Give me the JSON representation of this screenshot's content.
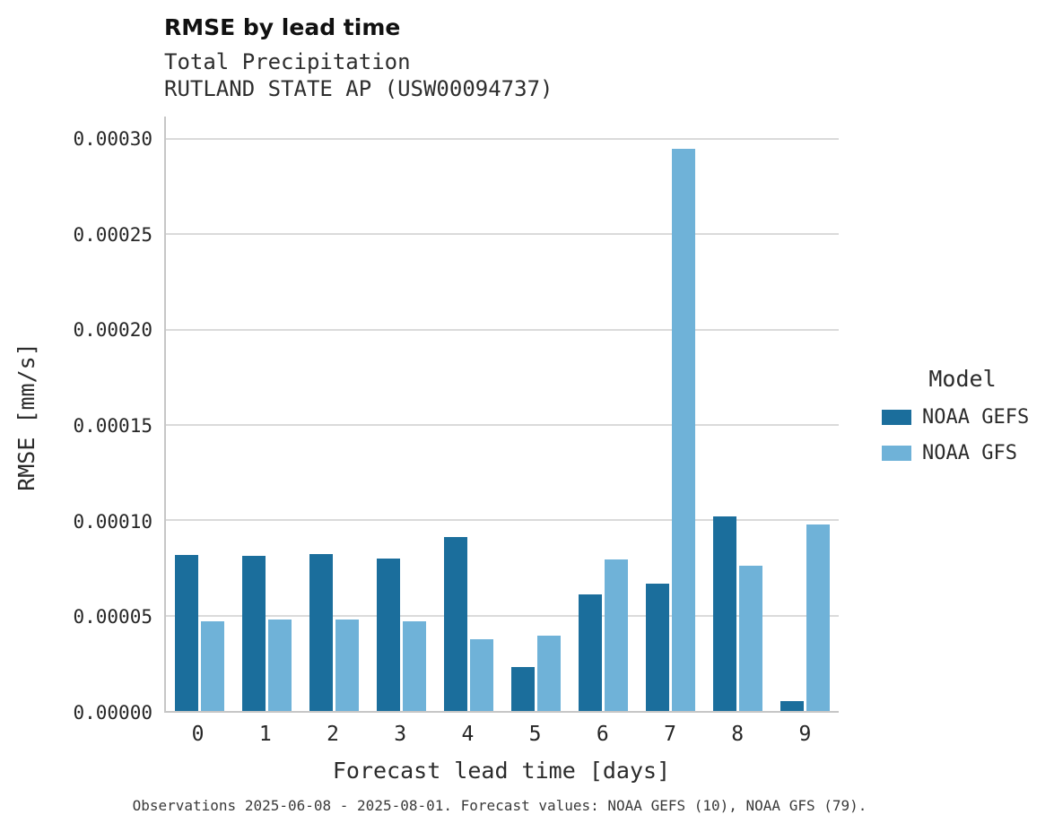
{
  "header": {
    "title": "RMSE by lead time",
    "subtitle_lines": [
      "Total Precipitation",
      "RUTLAND STATE AP (USW00094737)"
    ]
  },
  "legend": {
    "title": "Model",
    "entries": [
      {
        "label": "NOAA GEFS",
        "color": "#1b6e9c"
      },
      {
        "label": "NOAA GFS",
        "color": "#6fb2d8"
      }
    ]
  },
  "caption": "Observations 2025-06-08 - 2025-08-01. Forecast values: NOAA GEFS (10), NOAA GFS (79).",
  "chart_data": {
    "type": "bar",
    "title": "RMSE by lead time",
    "subtitle": "Total Precipitation — RUTLAND STATE AP (USW00094737)",
    "xlabel": "Forecast lead time [days]",
    "ylabel": "RMSE [mm/s]",
    "categories": [
      0,
      1,
      2,
      3,
      4,
      5,
      6,
      7,
      8,
      9
    ],
    "series": [
      {
        "name": "NOAA GEFS",
        "color": "#1b6e9c",
        "values": [
          8.2e-05,
          8.15e-05,
          8.25e-05,
          8e-05,
          9.1e-05,
          2.3e-05,
          6.1e-05,
          6.7e-05,
          0.000102,
          5e-06
        ]
      },
      {
        "name": "NOAA GFS",
        "color": "#6fb2d8",
        "values": [
          4.7e-05,
          4.8e-05,
          4.8e-05,
          4.7e-05,
          3.75e-05,
          3.95e-05,
          7.95e-05,
          0.000295,
          7.6e-05,
          9.8e-05
        ]
      }
    ],
    "ylim": [
      0,
      0.00031172
    ],
    "yticks": [
      0,
      5e-05,
      0.0001,
      0.00015,
      0.0002,
      0.00025,
      0.0003
    ],
    "ytick_labels": [
      "0.00000",
      "0.00005",
      "0.00010",
      "0.00015",
      "0.00020",
      "0.00025",
      "0.00030"
    ],
    "grid": "horizontal",
    "legend_position": "right"
  }
}
